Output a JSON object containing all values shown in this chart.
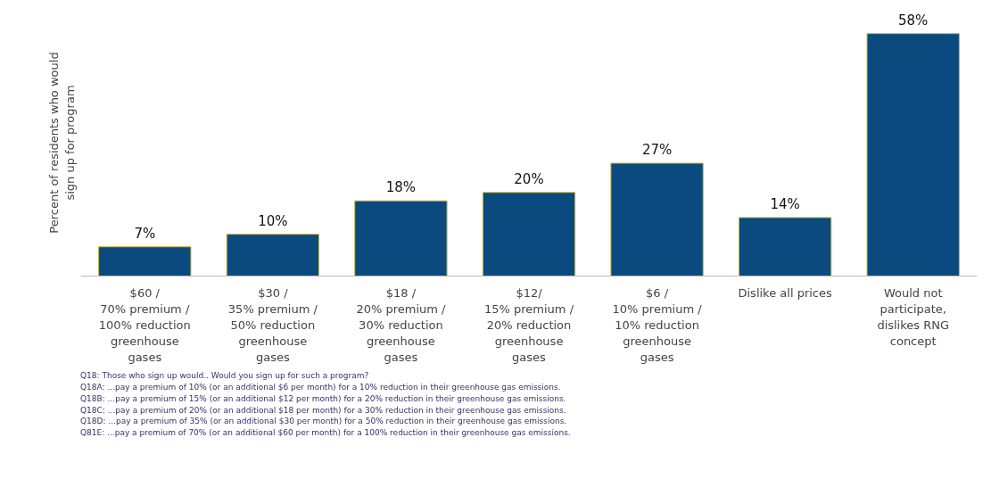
{
  "chart_data": {
    "type": "bar",
    "ylabel": "Percent of residents who would\nsign up for program",
    "categories": [
      "$60 /\n70% premium /\n100% reduction\ngreenhouse\ngases",
      "$30 /\n35% premium /\n50% reduction\ngreenhouse\ngases",
      "$18 /\n20% premium /\n30% reduction\ngreenhouse\ngases",
      "$12/\n15% premium /\n20% reduction\ngreenhouse\ngases",
      "$6 /\n10% premium /\n10% reduction\ngreenhouse\ngases",
      "Dislike all prices",
      "Would not\nparticipate,\ndislikes RNG\nconcept"
    ],
    "values": [
      7,
      10,
      18,
      20,
      27,
      14,
      58
    ],
    "value_labels": [
      "7%",
      "10%",
      "18%",
      "20%",
      "27%",
      "14%",
      "58%"
    ],
    "color": "#0b4a7e",
    "grid": false,
    "annotations": [
      "Q18: Those who sign up would.. Would you sign up for such a program?",
      "Q18A: ...pay a premium of 10% (or an additional $6 per month) for a 10% reduction in their greenhouse gas emissions.",
      "Q18B: ...pay a premium of 15% (or an additional $12 per month) for a 20% reduction in their greenhouse gas emissions.",
      "Q18C: ...pay a premium of 20% (or an additional $18 per month) for a 30% reduction in their greenhouse gas emissions.",
      "Q18D: ...pay a premium of 35% (or an additional $30 per month) for a 50% reduction in their greenhouse gas emissions.",
      "Q81E: ...pay a premium of 70% (or an additional $60 per month) for a 100% reduction in their greenhouse gas emissions."
    ]
  }
}
